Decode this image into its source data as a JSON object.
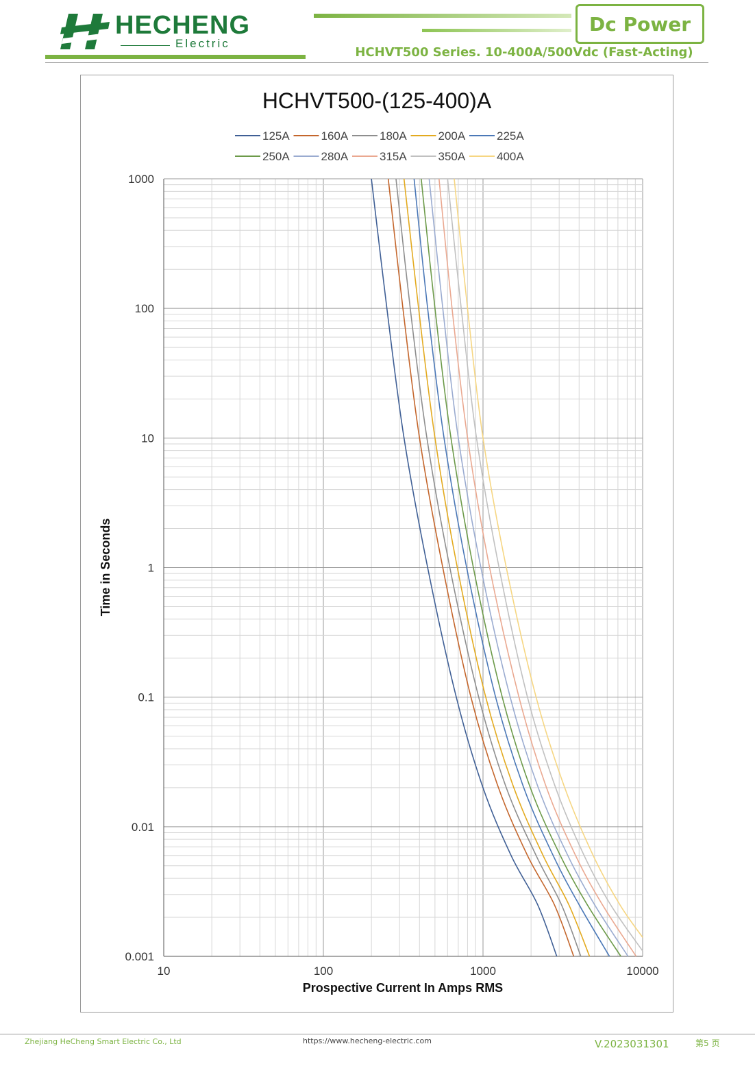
{
  "header": {
    "brand": "HECHENG",
    "brand_sub": "Electric",
    "badge": "Dc Power",
    "series_title": "HCHVT500 Series. 10-400A/500Vdc  (Fast-Acting)"
  },
  "colors": {
    "brand_green": "#1e7a3a",
    "accent_green": "#7cb342"
  },
  "chart_data": {
    "type": "line",
    "title": "HCHVT500-(125-400)A",
    "xlabel": "Prospective Current In Amps RMS",
    "ylabel": "Time in Seconds",
    "x_scale": "log",
    "y_scale": "log",
    "xlim": [
      10,
      10000
    ],
    "ylim": [
      0.001,
      1000
    ],
    "x_ticks": [
      "10",
      "100",
      "1000",
      "10000"
    ],
    "y_ticks": [
      "1000",
      "100",
      "10",
      "1",
      "0.1",
      "0.01",
      "0.001"
    ],
    "grid": true,
    "legend_position": "top",
    "series": [
      {
        "name": "125A",
        "color": "#3f5f95",
        "points": [
          [
            200,
            1000
          ],
          [
            250,
            100
          ],
          [
            320,
            10
          ],
          [
            450,
            1
          ],
          [
            680,
            0.1
          ],
          [
            1000,
            0.02
          ],
          [
            1500,
            0.006
          ],
          [
            2200,
            0.0025
          ],
          [
            2900,
            0.001
          ]
        ]
      },
      {
        "name": "160A",
        "color": "#c4662c",
        "points": [
          [
            255,
            1000
          ],
          [
            315,
            100
          ],
          [
            400,
            10
          ],
          [
            560,
            1
          ],
          [
            840,
            0.1
          ],
          [
            1250,
            0.02
          ],
          [
            1900,
            0.006
          ],
          [
            2800,
            0.0025
          ],
          [
            3700,
            0.001
          ]
        ]
      },
      {
        "name": "180A",
        "color": "#8e8e8e",
        "points": [
          [
            285,
            1000
          ],
          [
            350,
            100
          ],
          [
            445,
            10
          ],
          [
            620,
            1
          ],
          [
            940,
            0.1
          ],
          [
            1400,
            0.02
          ],
          [
            2150,
            0.006
          ],
          [
            3100,
            0.0025
          ],
          [
            4100,
            0.001
          ]
        ]
      },
      {
        "name": "200A",
        "color": "#e3aa1f",
        "points": [
          [
            320,
            1000
          ],
          [
            395,
            100
          ],
          [
            500,
            10
          ],
          [
            690,
            1
          ],
          [
            1040,
            0.1
          ],
          [
            1560,
            0.02
          ],
          [
            2380,
            0.006
          ],
          [
            3450,
            0.0025
          ],
          [
            4650,
            0.001
          ]
        ]
      },
      {
        "name": "225A",
        "color": "#4b78b7",
        "points": [
          [
            370,
            1000
          ],
          [
            450,
            100
          ],
          [
            570,
            10
          ],
          [
            790,
            1
          ],
          [
            1200,
            0.1
          ],
          [
            1800,
            0.02
          ],
          [
            2750,
            0.006
          ],
          [
            4000,
            0.0025
          ],
          [
            6200,
            0.001
          ]
        ]
      },
      {
        "name": "250A",
        "color": "#6c9a49",
        "points": [
          [
            410,
            1000
          ],
          [
            500,
            100
          ],
          [
            630,
            10
          ],
          [
            870,
            1
          ],
          [
            1320,
            0.1
          ],
          [
            1980,
            0.02
          ],
          [
            3050,
            0.006
          ],
          [
            4500,
            0.0025
          ],
          [
            7300,
            0.001
          ]
        ]
      },
      {
        "name": "280A",
        "color": "#9aabd0",
        "points": [
          [
            460,
            1000
          ],
          [
            560,
            100
          ],
          [
            700,
            10
          ],
          [
            970,
            1
          ],
          [
            1480,
            0.1
          ],
          [
            2220,
            0.02
          ],
          [
            3400,
            0.006
          ],
          [
            5000,
            0.0025
          ],
          [
            8100,
            0.001
          ]
        ]
      },
      {
        "name": "315A",
        "color": "#eaa890",
        "points": [
          [
            530,
            1000
          ],
          [
            640,
            100
          ],
          [
            800,
            10
          ],
          [
            1100,
            1
          ],
          [
            1680,
            0.1
          ],
          [
            2500,
            0.02
          ],
          [
            3800,
            0.006
          ],
          [
            5600,
            0.0025
          ],
          [
            9100,
            0.001
          ]
        ]
      },
      {
        "name": "350A",
        "color": "#c0c0c0",
        "points": [
          [
            600,
            1000
          ],
          [
            730,
            100
          ],
          [
            910,
            10
          ],
          [
            1260,
            1
          ],
          [
            1900,
            0.1
          ],
          [
            2850,
            0.02
          ],
          [
            4300,
            0.006
          ],
          [
            6300,
            0.0025
          ],
          [
            10000,
            0.0011
          ]
        ]
      },
      {
        "name": "400A",
        "color": "#f6d682",
        "points": [
          [
            660,
            1000
          ],
          [
            800,
            100
          ],
          [
            1000,
            10
          ],
          [
            1400,
            1
          ],
          [
            2150,
            0.1
          ],
          [
            3250,
            0.02
          ],
          [
            4900,
            0.006
          ],
          [
            7200,
            0.0025
          ],
          [
            10000,
            0.0014
          ]
        ]
      }
    ]
  },
  "footer": {
    "company": "Zhejiang HeCheng Smart Electric Co., Ltd",
    "url": "https://www.hecheng-electric.com",
    "version": "V.2023031301",
    "page": "第5 页"
  }
}
